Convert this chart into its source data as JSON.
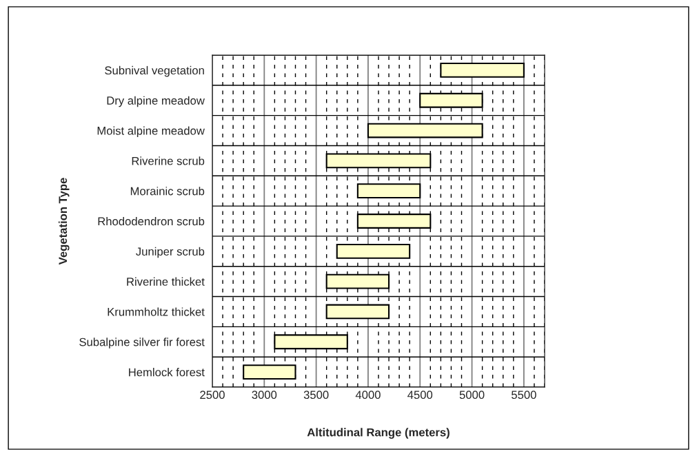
{
  "chart_data": {
    "type": "bar",
    "orientation": "horizontal",
    "xlabel": "Altitudinal Range (meters)",
    "ylabel": "Vegetation Type",
    "categories": [
      "Subnival vegetation",
      "Dry alpine meadow",
      "Moist alpine meadow",
      "Riverine scrub",
      "Morainic scrub",
      "Rhododendron scrub",
      "Juniper scrub",
      "Riverine thicket",
      "Krummholtz thicket",
      "Subalpine silver fir forest",
      "Hemlock forest"
    ],
    "base": [
      4700,
      4500,
      4000,
      3600,
      3900,
      3900,
      3700,
      3600,
      3600,
      3100,
      2800
    ],
    "values": [
      800,
      600,
      1100,
      1000,
      600,
      700,
      700,
      600,
      600,
      700,
      500
    ],
    "color": "#ffffcc",
    "xlim": [
      2500,
      5700
    ],
    "xticks": [
      2500,
      {
        "value": 2600,
        "label": null
      },
      {
        "value": 2700,
        "label": null
      },
      {
        "value": 2800,
        "label": null
      },
      {
        "value": 2900,
        "label": null
      },
      3000,
      {
        "value": 3100,
        "label": null
      },
      {
        "value": 3200,
        "label": null
      },
      {
        "value": 3300,
        "label": null
      },
      {
        "value": 3400,
        "label": null
      },
      3500,
      {
        "value": 3600,
        "label": null
      },
      {
        "value": 3700,
        "label": null
      },
      {
        "value": 3800,
        "label": null
      },
      {
        "value": 3900,
        "label": null
      },
      4000,
      {
        "value": 4100,
        "label": null
      },
      {
        "value": 4200,
        "label": null
      },
      {
        "value": 4300,
        "label": null
      },
      {
        "value": 4400,
        "label": null
      },
      4500,
      {
        "value": 4600,
        "label": null
      },
      {
        "value": 4700,
        "label": null
      },
      {
        "value": 4800,
        "label": null
      },
      {
        "value": 4900,
        "label": null
      },
      5000,
      {
        "value": 5100,
        "label": null
      },
      {
        "value": 5200,
        "label": null
      },
      {
        "value": 5300,
        "label": null
      },
      {
        "value": 5400,
        "label": null
      },
      5500,
      {
        "value": 5600,
        "label": null
      },
      {
        "value": 5700,
        "label": null
      }
    ],
    "grid": true
  }
}
